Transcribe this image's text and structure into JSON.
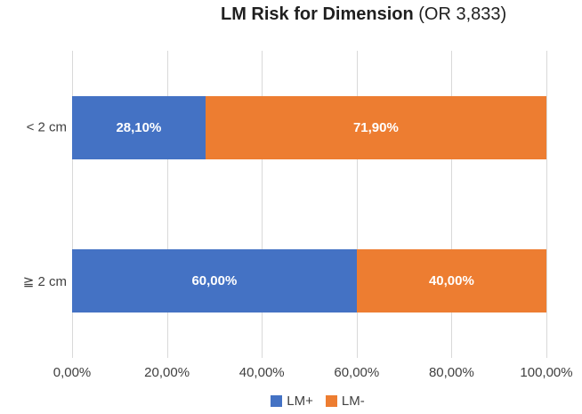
{
  "title": {
    "main": "LM Risk for Dimension",
    "suffix": " (OR 3,833)"
  },
  "chart_data": {
    "type": "bar",
    "orientation": "horizontal",
    "stacked": true,
    "title": "LM Risk for Dimension (OR 3,833)",
    "categories": [
      "< 2 cm",
      "≧ 2 cm"
    ],
    "series": [
      {
        "name": "LM+",
        "color": "#4472C4",
        "values": [
          28.1,
          60.0
        ],
        "labels": [
          "28,10%",
          "60,00%"
        ]
      },
      {
        "name": "LM-",
        "color": "#ED7D31",
        "values": [
          71.9,
          40.0
        ],
        "labels": [
          "71,90%",
          "40,00%"
        ]
      }
    ],
    "x_axis": {
      "range": [
        0,
        100
      ],
      "ticks": [
        {
          "value": 0,
          "label": "0,00%"
        },
        {
          "value": 20,
          "label": "20,00%"
        },
        {
          "value": 40,
          "label": "40,00%"
        },
        {
          "value": 60,
          "label": "60,00%"
        },
        {
          "value": 80,
          "label": "80,00%"
        },
        {
          "value": 100,
          "label": "100,00%"
        }
      ]
    },
    "grid": "vertical-only",
    "legend_position": "bottom-center"
  },
  "legend": {
    "items": [
      {
        "label": "LM+",
        "color": "#4472C4"
      },
      {
        "label": "LM-",
        "color": "#ED7D31"
      }
    ]
  },
  "colors": {
    "series_blue": "#4472C4",
    "series_orange": "#ED7D31",
    "gridline": "#D9D9D9",
    "axis_text": "#404040",
    "title_text": "#1f1f1f",
    "data_label_text": "#FFFFFF",
    "background": "#FFFFFF"
  }
}
